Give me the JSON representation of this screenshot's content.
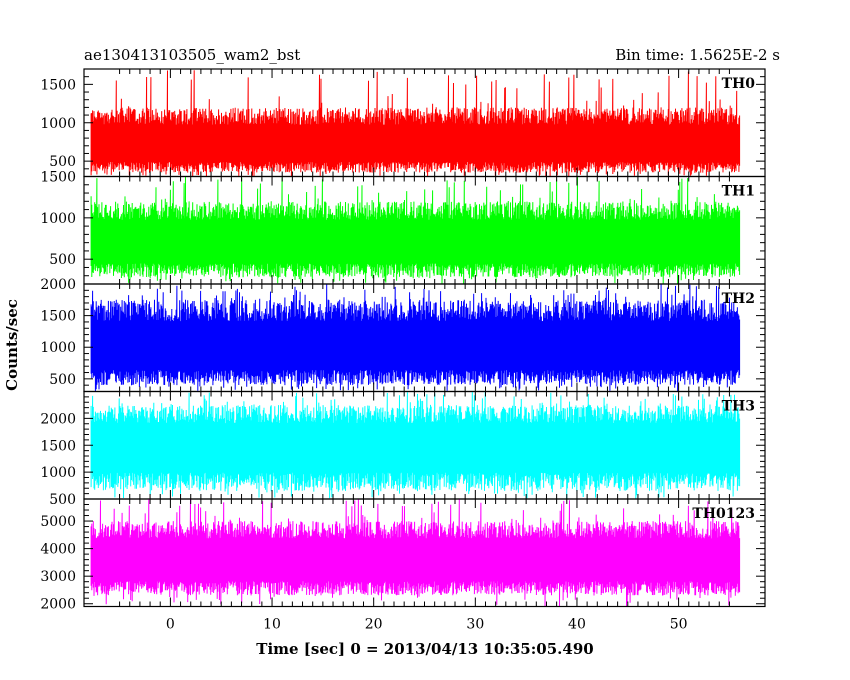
{
  "header": {
    "title_left": "ae130413103505_wam2_bst",
    "title_right": "Bin time: 1.5625E-2 s"
  },
  "axes": {
    "xlabel": "Time [sec] 0 = 2013/04/13 10:35:05.490",
    "ylabel": "Counts/sec"
  },
  "chart_data": {
    "type": "line",
    "title": "ae130413103505_wam2_bst",
    "subtitle": "Bin time: 1.5625E-2 s",
    "xlabel": "Time [sec] 0 = 2013/04/13 10:35:05.490",
    "ylabel": "Counts/sec",
    "xlim": [
      -8.5,
      58.5
    ],
    "x_data_range": [
      -7.8,
      56
    ],
    "xticks": [
      0,
      10,
      20,
      30,
      40,
      50
    ],
    "grid": false,
    "legend": "none",
    "panels": [
      {
        "name": "TH0",
        "color": "#ff0000",
        "ylim": [
          300,
          1700
        ],
        "yticks": [
          500,
          1000,
          1500
        ],
        "typical_low": 350,
        "typical_high": 1200,
        "mean": 700,
        "peak": 1700
      },
      {
        "name": "TH1",
        "color": "#00ff00",
        "ylim": [
          200,
          1500
        ],
        "yticks": [
          500,
          1000,
          1500
        ],
        "typical_low": 280,
        "typical_high": 1200,
        "mean": 700,
        "peak": 1500
      },
      {
        "name": "TH2",
        "color": "#0000ff",
        "ylim": [
          300,
          2000
        ],
        "yticks": [
          500,
          1000,
          1500,
          2000
        ],
        "typical_low": 400,
        "typical_high": 1750,
        "mean": 1000,
        "peak": 2000
      },
      {
        "name": "TH3",
        "color": "#00ffff",
        "ylim": [
          500,
          2500
        ],
        "yticks": [
          500,
          1000,
          1500,
          2000
        ],
        "typical_low": 650,
        "typical_high": 2250,
        "mean": 1500,
        "peak": 2500
      },
      {
        "name": "TH0123",
        "color": "#ff00ff",
        "ylim": [
          1900,
          5800
        ],
        "yticks": [
          2000,
          3000,
          4000,
          5000
        ],
        "typical_low": 2300,
        "typical_high": 5000,
        "mean": 3600,
        "peak": 5800
      }
    ]
  }
}
